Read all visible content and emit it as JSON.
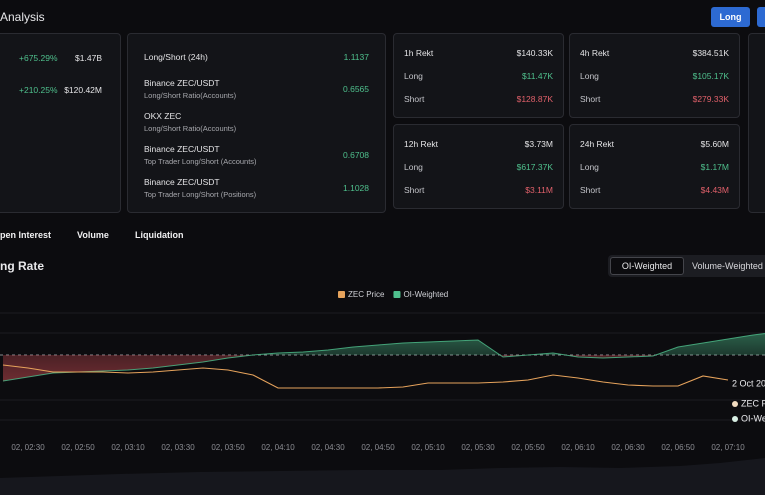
{
  "header": {
    "title": "Analysis",
    "button": "Long"
  },
  "summary": {
    "rows": [
      [
        "+675.29%",
        "$1.47B"
      ],
      [
        "+210.25%",
        "$120.42M"
      ]
    ]
  },
  "ratios": [
    {
      "label": "Long/Short (24h)",
      "value": 1.1137
    },
    {
      "label": "Binance ZEC/USDT",
      "sublabel": "Long/Short Ratio(Accounts)",
      "value": 0.6565
    },
    {
      "label": "OKX ZEC",
      "sublabel": "Long/Short Ratio(Accounts)"
    },
    {
      "label": "Binance ZEC/USDT",
      "sublabel": "Top Trader Long/Short (Accounts)",
      "value": 0.6708
    },
    {
      "label": "Binance ZEC/USDT",
      "sublabel": "Top Trader Long/Short (Positions)",
      "value": 1.1028
    }
  ],
  "rekt": [
    {
      "title": "1h Rekt",
      "total": "$140.33K",
      "long_label": "Long",
      "long": "$11.47K",
      "short_label": "Short",
      "short": "$128.87K"
    },
    {
      "title": "4h Rekt",
      "total": "$384.51K",
      "long_label": "Long",
      "long": "$105.17K",
      "short_label": "Short",
      "short": "$279.33K"
    },
    {
      "title": "12h Rekt",
      "total": "$3.73M",
      "long_label": "Long",
      "long": "$617.37K",
      "short_label": "Short",
      "short": "$3.11M"
    },
    {
      "title": "24h Rekt",
      "total": "$5.60M",
      "long_label": "Long",
      "long": "$1.17M",
      "short_label": "Short",
      "short": "$4.43M"
    }
  ],
  "tabs": [
    "pen Interest",
    "Volume",
    "Liquidation"
  ],
  "section_title": "ng Rate",
  "toggle": [
    "OI-Weighted",
    "Volume-Weighted"
  ],
  "chart_data": {
    "type": "line",
    "categories": [
      null,
      "02, 02:30",
      null,
      "02, 02:50",
      null,
      "02, 03:10",
      null,
      "02, 03:30",
      null,
      "02, 03:50",
      null,
      "02, 04:10",
      null,
      "02, 04:30",
      null,
      "02, 04:50",
      null,
      "02, 05:10",
      null,
      "02, 05:30",
      null,
      "02, 05:50",
      null,
      "02, 06:10",
      null,
      "02, 06:30",
      null,
      "02, 06:50",
      null,
      "02, 07:10",
      null,
      null
    ],
    "series": [
      {
        "name": "ZEC Price",
        "color": "#e6a35c",
        "axis": "y2",
        "values": [
          65,
          62,
          58,
          58,
          58,
          57,
          58,
          60,
          62,
          60,
          55,
          42,
          42,
          42,
          42,
          42,
          43,
          47,
          47,
          47,
          48,
          50,
          55,
          52,
          48,
          45,
          44,
          44,
          54,
          50,
          null,
          null
        ]
      },
      {
        "name": "OI-Weighted",
        "color": "#4fc08d",
        "negative_color": "#c0484f",
        "values": [
          -0.026,
          -0.022,
          -0.018,
          -0.017,
          -0.016,
          -0.015,
          -0.013,
          -0.01,
          -0.007,
          -0.003,
          0,
          0.002,
          0.003,
          0.005,
          0.008,
          0.01,
          0.012,
          0.013,
          0.014,
          0.015,
          -0.002,
          0,
          0.002,
          -0.002,
          -0.003,
          -0.002,
          -0.001,
          0.008,
          0.012,
          0.016,
          0.02,
          0.023
        ]
      }
    ],
    "ylim": [
      -0.075,
      0.05
    ],
    "y2lim": [
      0,
      125
    ]
  },
  "tooltip": {
    "date": "2 Oct 20",
    "rows": [
      "ZEC P",
      "OI-We"
    ]
  }
}
